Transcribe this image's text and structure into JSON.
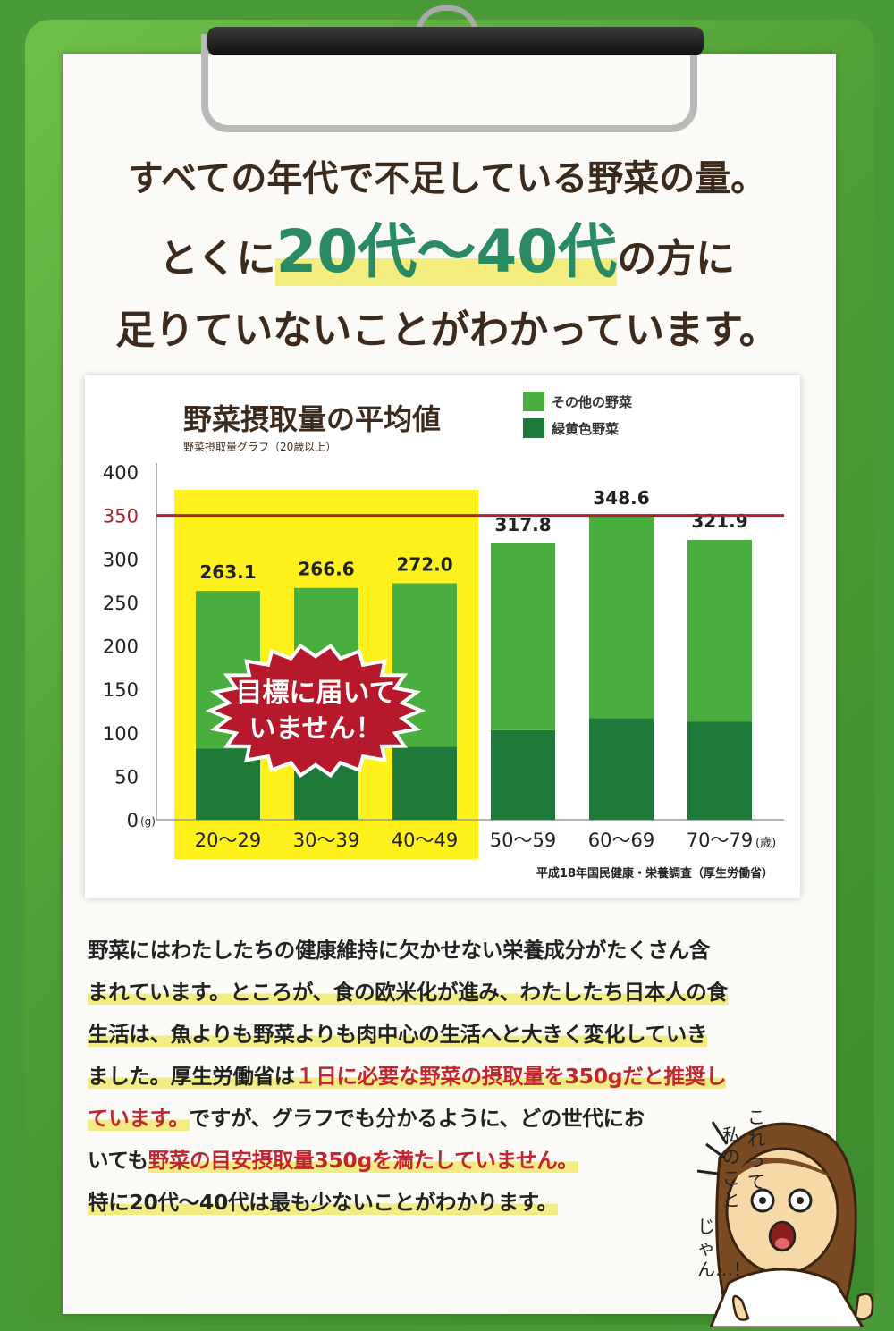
{
  "headline": {
    "line1": "すべての年代で不足している野菜の量。",
    "line2_pre": "とくに",
    "line2_highlight": "20代〜40代",
    "line2_post": "の方に",
    "line3": "足りていないことがわかっています。"
  },
  "chart_data": {
    "type": "bar",
    "title": "野菜摂取量の平均値",
    "subtitle": "野菜摂取量グラフ（20歳以上）",
    "source": "平成18年国民健康・栄養調査（厚生労働省）",
    "categories": [
      "20〜29",
      "30〜39",
      "40〜49",
      "50〜59",
      "60〜69",
      "70〜79"
    ],
    "x_unit": "(歳)",
    "y_unit": "(g)",
    "ylim": [
      0,
      400
    ],
    "yticks": [
      0,
      50,
      100,
      150,
      200,
      250,
      300,
      350,
      400
    ],
    "totals": [
      263.1,
      266.6,
      272.0,
      317.8,
      348.6,
      321.9
    ],
    "total_labels": [
      "263.1",
      "266.6",
      "272.0",
      "317.8",
      "348.6",
      "321.9"
    ],
    "series": [
      {
        "name": "緑黄色野菜",
        "values": [
          82,
          83,
          84,
          103,
          117,
          113
        ],
        "color": "#1f7a3a"
      },
      {
        "name": "その他の野菜",
        "values": [
          181.1,
          183.6,
          188.0,
          214.8,
          231.6,
          208.9
        ],
        "color": "#4aae3e"
      }
    ],
    "target_line": {
      "value": 350,
      "label": "350",
      "color": "#b3202c"
    },
    "highlight_categories": [
      0,
      1,
      2
    ],
    "highlight_color": "#fff21c",
    "badge_lines": [
      "目標に届いて",
      "いません！"
    ],
    "badge_color": "#b5192b",
    "grid": false,
    "legend_position": "top"
  },
  "body": {
    "lines": [
      [
        {
          "t": "野菜にはわたしたちの健康維持に欠かせない栄養成分がたくさん含"
        }
      ],
      [
        {
          "t": "まれています。ところが、食の欧米化が進み、わたしたち日本人の食",
          "mark": true
        }
      ],
      [
        {
          "t": "生活は、魚よりも野菜よりも肉中心の生活へと大きく変化していき",
          "mark": true
        }
      ],
      [
        {
          "t": "ました。厚生労働省は",
          "mark": true
        },
        {
          "t": "１日に必要な野菜の摂取量を350gだと推奨し",
          "mark": true,
          "red": true
        }
      ],
      [
        {
          "t": "ています。",
          "mark": true,
          "red": true
        },
        {
          "t": "ですが、グラフでも分かるように、どの世代にお"
        }
      ],
      [
        {
          "t": "いても"
        },
        {
          "t": "野菜の目安摂取量350gを満たしていません。",
          "mark": true,
          "red": true
        }
      ],
      [
        {
          "t": "特に20代〜40代は最も少ないことがわかります。",
          "mark": true
        }
      ]
    ]
  },
  "speech": {
    "col1": "これって",
    "col2": "私のこと",
    "col3": "じゃん…！"
  }
}
